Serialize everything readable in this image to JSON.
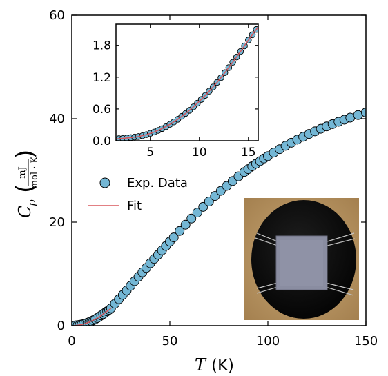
{
  "chart_data": [
    {
      "type": "scatter",
      "panel": "main",
      "xlabel": "T (K)",
      "xlabel_symbol": "T",
      "xlabel_unit": "(K)",
      "ylabel_symbol": "C",
      "ylabel_subscript": "p",
      "ylabel_unit_numerator": "mJ",
      "ylabel_unit_denominator": "mol · K",
      "xlim": [
        0,
        150
      ],
      "ylim": [
        0,
        60
      ],
      "xticks": [
        "0",
        "50",
        "100",
        "150"
      ],
      "yticks": [
        "0",
        "20",
        "40",
        "60"
      ],
      "grid": false,
      "legend_position": "center-left",
      "series": [
        {
          "name": "Exp. Data",
          "style": "markers",
          "marker_color": "#74b7d5",
          "x": [
            2,
            3,
            4,
            5,
            6,
            7,
            8,
            9,
            10,
            11,
            12,
            13,
            14,
            15,
            16,
            17,
            18,
            19,
            20,
            22,
            24,
            26,
            28,
            30,
            32,
            34,
            36,
            38,
            40,
            42,
            44,
            46,
            48,
            50,
            52,
            55,
            58,
            61,
            64,
            67,
            70,
            73,
            76,
            79,
            82,
            85,
            88,
            90,
            92,
            94,
            96,
            98,
            100,
            103,
            106,
            109,
            112,
            115,
            118,
            121,
            124,
            127,
            130,
            133,
            136,
            139,
            142,
            146,
            150
          ],
          "y": [
            0.05,
            0.09,
            0.15,
            0.22,
            0.31,
            0.42,
            0.55,
            0.7,
            0.87,
            1.05,
            1.26,
            1.48,
            1.72,
            1.97,
            2.23,
            2.5,
            2.78,
            3.05,
            3.35,
            4.25,
            5.1,
            5.95,
            6.8,
            7.7,
            8.6,
            9.45,
            10.3,
            11.15,
            12.05,
            12.9,
            13.7,
            14.55,
            15.4,
            16.25,
            17.05,
            18.3,
            19.5,
            20.7,
            21.85,
            22.95,
            24.0,
            25.05,
            26.05,
            27.0,
            27.95,
            28.85,
            29.7,
            30.25,
            30.8,
            31.3,
            31.8,
            32.3,
            32.75,
            33.45,
            34.1,
            34.75,
            35.35,
            35.95,
            36.5,
            37.05,
            37.55,
            38.05,
            38.5,
            38.95,
            39.4,
            39.8,
            40.2,
            40.7,
            41.2
          ]
        },
        {
          "name": "Fit",
          "style": "line",
          "line_color": "#d9575c",
          "x": [
            1,
            2,
            3,
            4,
            5,
            6,
            7,
            8,
            9,
            10,
            11,
            12,
            13,
            14,
            15,
            16,
            17,
            18,
            19,
            20
          ],
          "y": [
            0.02,
            0.05,
            0.09,
            0.15,
            0.22,
            0.31,
            0.42,
            0.55,
            0.7,
            0.87,
            1.05,
            1.26,
            1.48,
            1.72,
            1.97,
            2.23,
            2.5,
            2.78,
            3.05,
            3.35
          ]
        }
      ]
    },
    {
      "type": "scatter",
      "panel": "inset",
      "xlim": [
        1.5,
        16
      ],
      "ylim": [
        0,
        2.2
      ],
      "xticks": [
        "5",
        "10",
        "15"
      ],
      "yticks": [
        "0.0",
        "0.6",
        "1.2",
        "1.8"
      ],
      "series": [
        {
          "name": "Exp. Data",
          "style": "markers",
          "marker_color": "#74b7d5",
          "x": [
            1.8,
            2.2,
            2.6,
            3.0,
            3.4,
            3.8,
            4.2,
            4.6,
            5.0,
            5.4,
            5.8,
            6.2,
            6.6,
            7.0,
            7.4,
            7.8,
            8.2,
            8.6,
            9.0,
            9.4,
            9.8,
            10.2,
            10.6,
            11.0,
            11.4,
            11.8,
            12.2,
            12.6,
            13.0,
            13.4,
            13.8,
            14.2,
            14.6,
            15.0,
            15.4,
            15.8
          ],
          "y": [
            0.04,
            0.045,
            0.05,
            0.06,
            0.07,
            0.08,
            0.095,
            0.115,
            0.14,
            0.165,
            0.195,
            0.23,
            0.265,
            0.31,
            0.355,
            0.405,
            0.46,
            0.515,
            0.575,
            0.64,
            0.71,
            0.78,
            0.855,
            0.935,
            1.015,
            1.1,
            1.19,
            1.285,
            1.38,
            1.48,
            1.58,
            1.685,
            1.79,
            1.9,
            2.0,
            2.1
          ]
        },
        {
          "name": "Fit",
          "style": "line",
          "line_color": "#d9575c",
          "x": [
            1.5,
            2.2,
            3.0,
            3.8,
            4.6,
            5.4,
            6.2,
            7.0,
            7.8,
            8.6,
            9.4,
            10.2,
            11.0,
            11.8,
            12.6,
            13.4,
            14.2,
            15.0,
            15.8,
            16.0
          ],
          "y": [
            0.035,
            0.045,
            0.06,
            0.08,
            0.115,
            0.165,
            0.23,
            0.31,
            0.405,
            0.515,
            0.64,
            0.78,
            0.935,
            1.1,
            1.285,
            1.48,
            1.685,
            1.9,
            2.1,
            2.15
          ]
        }
      ]
    }
  ],
  "colors": {
    "marker_fill": "#74b7d5",
    "marker_edge": "#000000",
    "fit_line": "#d9575c",
    "axes": "#000000"
  },
  "photo": {
    "description_icon": "sample-photo",
    "background": "#b99564",
    "disk": "#141414",
    "sample": "#8a8da1"
  }
}
